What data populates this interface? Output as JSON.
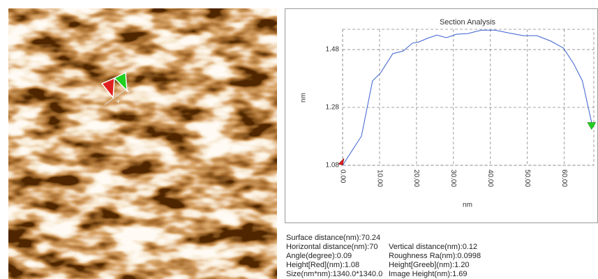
{
  "chart_data": {
    "type": "line",
    "title": "Section Analysis",
    "x_label": "nm",
    "y_label": "nm",
    "x": [
      0,
      5.1,
      8.1,
      10.2,
      13.6,
      16.4,
      18.9,
      20.6,
      22.8,
      25.5,
      28.1,
      30.9,
      33.8,
      37.5,
      41.3,
      45.1,
      48.9,
      52.6,
      56.4,
      59.8,
      62.5,
      64.9,
      67.4
    ],
    "series": [
      {
        "color": "#3a5fd0",
        "values": [
          1.08,
          1.181,
          1.372,
          1.398,
          1.466,
          1.475,
          1.502,
          1.506,
          1.518,
          1.53,
          1.521,
          1.533,
          1.535,
          1.547,
          1.547,
          1.537,
          1.528,
          1.528,
          1.509,
          1.485,
          1.432,
          1.372,
          1.228
        ]
      }
    ],
    "xlim": [
      0,
      68
    ],
    "ylim": [
      1.08,
      1.55
    ],
    "xticks": [
      {
        "value": 0,
        "label": "0.00"
      },
      {
        "value": 10,
        "label": "10.00"
      },
      {
        "value": 20,
        "label": "20.00"
      },
      {
        "value": 30,
        "label": "30.00"
      },
      {
        "value": 40,
        "label": "40.00"
      },
      {
        "value": 50,
        "label": "50.00"
      },
      {
        "value": 60,
        "label": "60.00"
      }
    ],
    "yticks": [
      1.08,
      1.28,
      1.48
    ],
    "grid": true
  },
  "stats": [
    [
      "Surface distance(nm):70.24"
    ],
    [
      "Horizontal distance(nm):70",
      "Vertical distance(nm):0.12"
    ],
    [
      "Angle(degree):0.09",
      "Roughness Ra(nm):0.0998"
    ],
    [
      "Height[Red](nm):1.08",
      "Height[Greeb](nm):1.20"
    ],
    [
      "Size(nm*nm):1340.0*1340.0",
      "Image Height(nm):1.69"
    ]
  ]
}
